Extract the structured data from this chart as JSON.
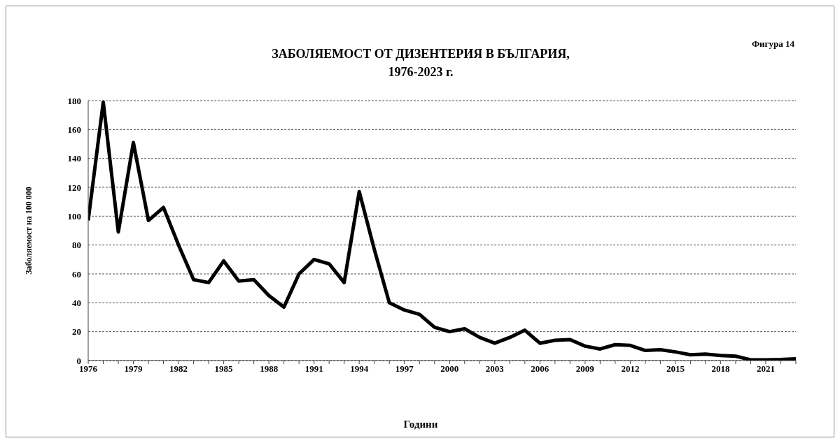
{
  "chart_data": {
    "type": "line",
    "title": "ЗАБОЛЯЕМОСТ ОТ ДИЗЕНТЕРИЯ В БЪЛГАРИЯ,\n1976-2023 г.",
    "annotations": [
      "Фигура 14"
    ],
    "xlabel": "Години",
    "ylabel": "Заболяемост на 100 000",
    "x": [
      1976,
      1977,
      1978,
      1979,
      1980,
      1981,
      1982,
      1983,
      1984,
      1985,
      1986,
      1987,
      1988,
      1989,
      1990,
      1991,
      1992,
      1993,
      1994,
      1995,
      1996,
      1997,
      1998,
      1999,
      2000,
      2001,
      2002,
      2003,
      2004,
      2005,
      2006,
      2007,
      2008,
      2009,
      2010,
      2011,
      2012,
      2013,
      2014,
      2015,
      2016,
      2017,
      2018,
      2019,
      2020,
      2021,
      2022,
      2023
    ],
    "series": [
      {
        "color": "#000000",
        "values": [
          97,
          179,
          89,
          151,
          97,
          106,
          80,
          56,
          54,
          69,
          55,
          56,
          45,
          37,
          60,
          70,
          67,
          54,
          117,
          77,
          40,
          35,
          32,
          23,
          20,
          22,
          16,
          12,
          16,
          21,
          12,
          14,
          14.5,
          10,
          8,
          11,
          10.5,
          7,
          7.5,
          6,
          4,
          4.5,
          3.5,
          3,
          0.5,
          0.5,
          0.7,
          1.2
        ]
      }
    ],
    "xlim": [
      1976,
      2023
    ],
    "xticks": [
      1976,
      {
        "value": 1977,
        "label": null
      },
      {
        "value": 1978,
        "label": null
      },
      1979,
      {
        "value": 1980,
        "label": null
      },
      {
        "value": 1981,
        "label": null
      },
      1982,
      {
        "value": 1983,
        "label": null
      },
      {
        "value": 1984,
        "label": null
      },
      1985,
      {
        "value": 1986,
        "label": null
      },
      {
        "value": 1987,
        "label": null
      },
      1988,
      {
        "value": 1989,
        "label": null
      },
      {
        "value": 1990,
        "label": null
      },
      1991,
      {
        "value": 1992,
        "label": null
      },
      {
        "value": 1993,
        "label": null
      },
      1994,
      {
        "value": 1995,
        "label": null
      },
      {
        "value": 1996,
        "label": null
      },
      1997,
      {
        "value": 1998,
        "label": null
      },
      {
        "value": 1999,
        "label": null
      },
      2000,
      {
        "value": 2001,
        "label": null
      },
      {
        "value": 2002,
        "label": null
      },
      2003,
      {
        "value": 2004,
        "label": null
      },
      {
        "value": 2005,
        "label": null
      },
      2006,
      {
        "value": 2007,
        "label": null
      },
      {
        "value": 2008,
        "label": null
      },
      2009,
      {
        "value": 2010,
        "label": null
      },
      {
        "value": 2011,
        "label": null
      },
      2012,
      {
        "value": 2013,
        "label": null
      },
      {
        "value": 2014,
        "label": null
      },
      2015,
      {
        "value": 2016,
        "label": null
      },
      {
        "value": 2017,
        "label": null
      },
      2018,
      {
        "value": 2019,
        "label": null
      },
      {
        "value": 2020,
        "label": null
      },
      2021,
      {
        "value": 2022,
        "label": null
      },
      {
        "value": 2023,
        "label": null
      }
    ],
    "ylim": [
      0,
      180
    ],
    "yticks": [
      0,
      20,
      40,
      60,
      80,
      100,
      120,
      140,
      160,
      180
    ],
    "grid": "y",
    "line_style": "solid"
  }
}
